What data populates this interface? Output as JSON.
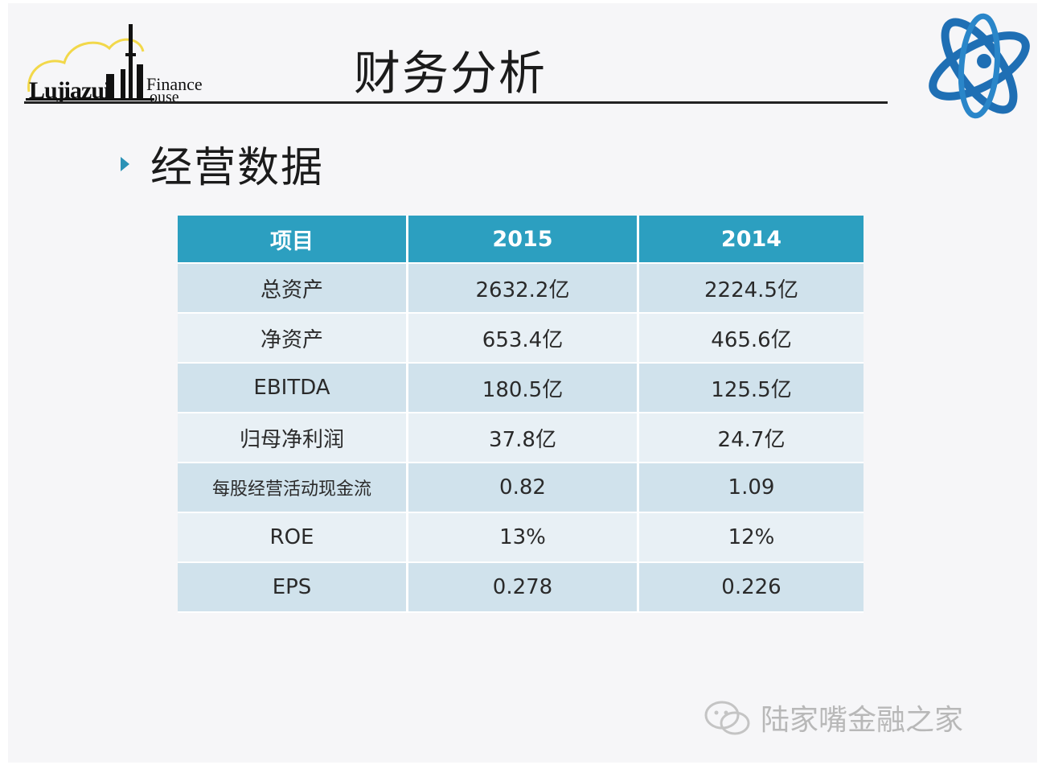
{
  "header": {
    "title": "财务分析",
    "logo_word": "Lujiazui",
    "logo_finance": "Finance",
    "logo_house": "ouse"
  },
  "section": {
    "subtitle": "经营数据"
  },
  "table": {
    "headers": [
      "项目",
      "2015",
      "2014"
    ],
    "rows": [
      [
        "总资产",
        "2632.2亿",
        "2224.5亿"
      ],
      [
        "净资产",
        "653.4亿",
        "465.6亿"
      ],
      [
        "EBITDA",
        "180.5亿",
        "125.5亿"
      ],
      [
        "归母净利润",
        "37.8亿",
        "24.7亿"
      ],
      [
        "每股经营活动现金流",
        "0.82",
        "1.09"
      ],
      [
        "ROE",
        "13%",
        "12%"
      ],
      [
        "EPS",
        "0.278",
        "0.226"
      ]
    ]
  },
  "watermark": {
    "text": "陆家嘴金融之家"
  },
  "colors": {
    "header_bg": "#2c9fc0",
    "row_dark": "#d0e2ec",
    "row_light": "#e8f0f5",
    "accent": "#2b92b6"
  },
  "icons": {
    "logo": "skyline-cloud-logo",
    "corner": "atom-logo",
    "bullet": "triangle-bullet-icon",
    "watermark": "wechat-icon"
  }
}
